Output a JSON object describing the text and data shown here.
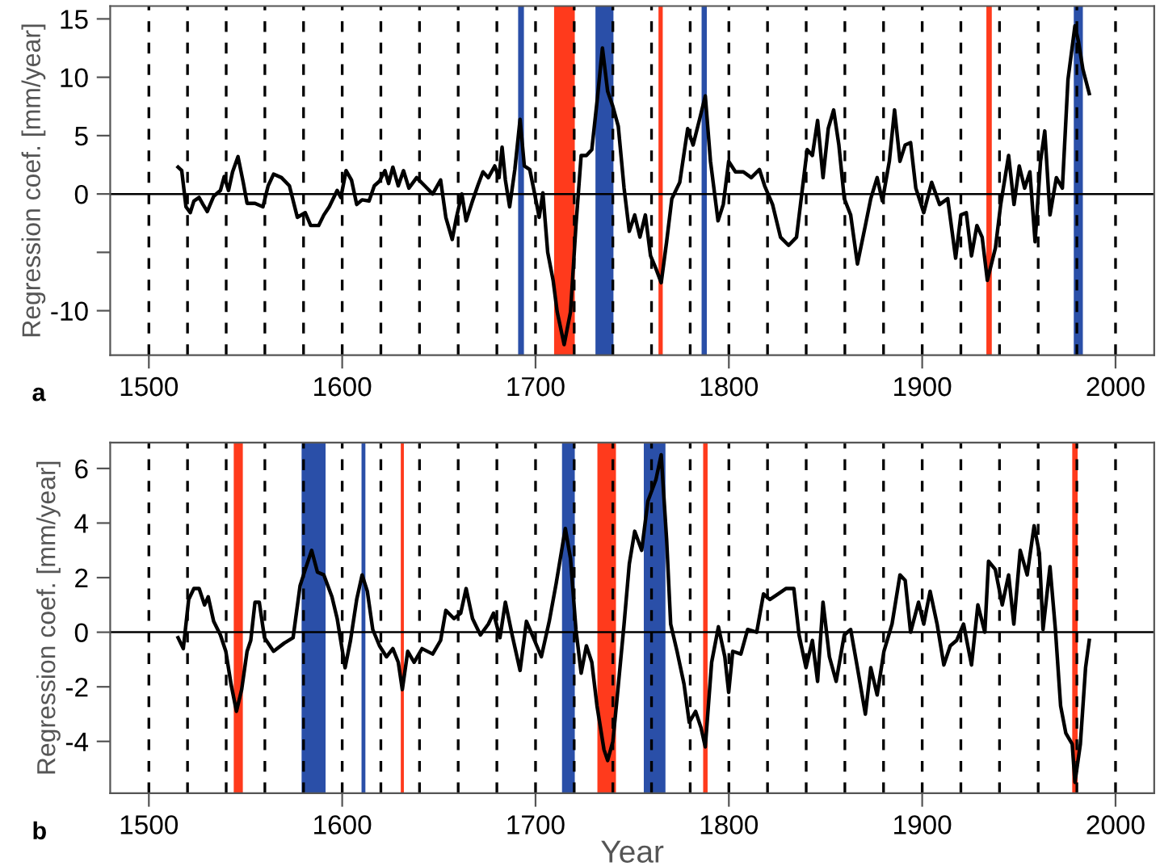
{
  "chart_data": [
    {
      "type": "line",
      "ylabel": "Regression coef. [mm/year]",
      "annotations": [
        "a"
      ],
      "xlim": [
        1480,
        2020
      ],
      "xticks": [
        1500,
        1600,
        1700,
        1800,
        1900,
        2000
      ],
      "ylim": [
        -13.8,
        16.1
      ],
      "yticks": [
        15,
        10,
        5,
        0,
        {
          "value": -5,
          "label": null
        },
        -10
      ],
      "grid": false,
      "legend": false,
      "marker": "none",
      "line_style": "solid",
      "series": [
        {
          "color": "#000000",
          "x": [
            1515.1,
            1517,
            1519.2,
            1521.4,
            1523.3,
            1526,
            1528,
            1530.2,
            1533.5,
            1537,
            1539,
            1541.2,
            1543.3,
            1546.1,
            1548.8,
            1550.8,
            1554.9,
            1559,
            1561.7,
            1564.5,
            1568.6,
            1572.7,
            1576.8,
            1580.9,
            1583.7,
            1587.8,
            1590.5,
            1593.3,
            1597.4,
            1599.3,
            1602,
            1604.8,
            1607.5,
            1610.3,
            1613.9,
            1616.6,
            1619.3,
            1622.1,
            1624,
            1626.2,
            1629,
            1631.7,
            1634.5,
            1638.5,
            1642.7,
            1646.8,
            1650.9,
            1653.6,
            1656.9,
            1659.1,
            1661.9,
            1664.1,
            1667.4,
            1670.1,
            1672.8,
            1675.6,
            1678.9,
            1681.1,
            1682.7,
            1684.4,
            1686.6,
            1689.3,
            1692,
            1694.2,
            1697,
            1699.2,
            1701.9,
            1703.8,
            1706.3,
            1709.1,
            1711.2,
            1714.8,
            1718.1,
            1720.9,
            1723.6,
            1726.3,
            1729.1,
            1731.8,
            1734.6,
            1737.3,
            1740,
            1742.8,
            1745.8,
            1748.5,
            1751.3,
            1754,
            1756.8,
            1759.5,
            1762.3,
            1765,
            1767.8,
            1770.5,
            1774.6,
            1778.7,
            1781.5,
            1785,
            1787.8,
            1790.5,
            1794.4,
            1797.1,
            1799.9,
            1803.4,
            1807.5,
            1811.6,
            1815.8,
            1818.5,
            1822.6,
            1826.7,
            1830.9,
            1835,
            1837.7,
            1840.5,
            1843.2,
            1845.9,
            1848.7,
            1851.4,
            1854.2,
            1856.9,
            1859.7,
            1863,
            1866.5,
            1870.6,
            1873.4,
            1876.7,
            1879.4,
            1883,
            1885.7,
            1888.5,
            1891.2,
            1894,
            1896.7,
            1900.8,
            1904.9,
            1909,
            1913.2,
            1917.3,
            1920,
            1922.8,
            1925.5,
            1928.3,
            1931,
            1933.7,
            1937.9,
            1940.6,
            1944.7,
            1947.5,
            1950.2,
            1953,
            1955.7,
            1958.4,
            1961.2,
            1963.4,
            1966.1,
            1969.4,
            1972.5,
            1975.4,
            1979,
            1980.9,
            1983.1,
            1986.4
          ],
          "values": [
            2.3,
            2.0,
            -1.1,
            -1.6,
            -0.6,
            -0.3,
            -0.9,
            -1.5,
            -0.2,
            0.3,
            1.5,
            0.3,
            1.9,
            3.2,
            1.0,
            -0.8,
            -0.8,
            -1.1,
            0.7,
            1.7,
            1.4,
            0.7,
            -2.0,
            -1.6,
            -2.7,
            -2.7,
            -1.8,
            -1.1,
            0.3,
            -0.3,
            2.0,
            1.2,
            -0.9,
            -0.5,
            -0.6,
            0.7,
            1.1,
            2.0,
            0.9,
            2.3,
            0.7,
            2.0,
            0.5,
            1.4,
            0.7,
            0,
            1.2,
            -2.0,
            -3.9,
            -2.0,
            0,
            -2.3,
            -0.6,
            0.7,
            1.9,
            1.4,
            2.4,
            1.4,
            4.0,
            1.2,
            -1.1,
            2.1,
            6.4,
            2.4,
            2.1,
            0.3,
            -2.0,
            0.1,
            -5.0,
            -7.4,
            -10.1,
            -12.9,
            -10.1,
            -2.7,
            3.3,
            3.3,
            3.8,
            7.9,
            12.5,
            8.8,
            7.5,
            5.8,
            0.5,
            -3.2,
            -1.8,
            -3.7,
            -1.8,
            -5.3,
            -6.4,
            -7.6,
            -4.1,
            -0.4,
            1.0,
            5.6,
            4.2,
            6.5,
            8.4,
            2.8,
            -2.3,
            -0.9,
            2.8,
            1.9,
            1.9,
            1.4,
            2.1,
            0.7,
            -0.9,
            -3.7,
            -4.4,
            -3.7,
            0,
            3.8,
            3.3,
            6.3,
            1.4,
            5.6,
            7.2,
            4.2,
            -0.4,
            -1.8,
            -6.0,
            -2.7,
            -0.4,
            1.4,
            -0.6,
            2.8,
            7.2,
            2.8,
            4.2,
            4.4,
            0.5,
            -1.6,
            1.0,
            -0.9,
            -0.4,
            -5.5,
            -1.8,
            -1.6,
            -5.3,
            -2.7,
            -3.7,
            -7.4,
            -4.6,
            -0.9,
            3.3,
            -0.9,
            2.4,
            0.5,
            1.9,
            -4.1,
            2.8,
            5.4,
            -1.8,
            1.4,
            0.5,
            9.8,
            14.4,
            13.0,
            10.7,
            8.6
          ]
        }
      ],
      "bands": [
        {
          "axis": "x",
          "from": 1691,
          "to": 1694,
          "color": "#2a4fa8"
        },
        {
          "axis": "x",
          "from": 1709.6,
          "to": 1720.3,
          "color": "#ff3a1c"
        },
        {
          "axis": "x",
          "from": 1731,
          "to": 1740.3,
          "color": "#2a4fa8"
        },
        {
          "axis": "x",
          "from": 1763.6,
          "to": 1765.8,
          "color": "#ff3a1c"
        },
        {
          "axis": "x",
          "from": 1785.9,
          "to": 1788.6,
          "color": "#2a4fa8"
        },
        {
          "axis": "x",
          "from": 1933.2,
          "to": 1936,
          "color": "#ff3a1c"
        },
        {
          "axis": "x",
          "from": 1978.4,
          "to": 1983.1,
          "color": "#2a4fa8"
        }
      ],
      "ref_lines": [
        {
          "axis": "y",
          "value": 0,
          "color": "#000000",
          "line_style": "solid"
        },
        {
          "axis": "x",
          "value": 1500,
          "color": "#000000",
          "line_style": "dashed"
        },
        {
          "axis": "x",
          "value": 1520,
          "color": "#000000",
          "line_style": "dashed"
        },
        {
          "axis": "x",
          "value": 1540,
          "color": "#000000",
          "line_style": "dashed"
        },
        {
          "axis": "x",
          "value": 1560,
          "color": "#000000",
          "line_style": "dashed"
        },
        {
          "axis": "x",
          "value": 1580,
          "color": "#000000",
          "line_style": "dashed"
        },
        {
          "axis": "x",
          "value": 1600,
          "color": "#000000",
          "line_style": "dashed"
        },
        {
          "axis": "x",
          "value": 1620,
          "color": "#000000",
          "line_style": "dashed"
        },
        {
          "axis": "x",
          "value": 1640,
          "color": "#000000",
          "line_style": "dashed"
        },
        {
          "axis": "x",
          "value": 1660,
          "color": "#000000",
          "line_style": "dashed"
        },
        {
          "axis": "x",
          "value": 1680,
          "color": "#000000",
          "line_style": "dashed"
        },
        {
          "axis": "x",
          "value": 1700,
          "color": "#000000",
          "line_style": "dashed"
        },
        {
          "axis": "x",
          "value": 1720,
          "color": "#000000",
          "line_style": "dashed"
        },
        {
          "axis": "x",
          "value": 1740,
          "color": "#000000",
          "line_style": "dashed"
        },
        {
          "axis": "x",
          "value": 1760,
          "color": "#000000",
          "line_style": "dashed"
        },
        {
          "axis": "x",
          "value": 1780,
          "color": "#000000",
          "line_style": "dashed"
        },
        {
          "axis": "x",
          "value": 1800,
          "color": "#000000",
          "line_style": "dashed"
        },
        {
          "axis": "x",
          "value": 1820,
          "color": "#000000",
          "line_style": "dashed"
        },
        {
          "axis": "x",
          "value": 1840,
          "color": "#000000",
          "line_style": "dashed"
        },
        {
          "axis": "x",
          "value": 1860,
          "color": "#000000",
          "line_style": "dashed"
        },
        {
          "axis": "x",
          "value": 1880,
          "color": "#000000",
          "line_style": "dashed"
        },
        {
          "axis": "x",
          "value": 1900,
          "color": "#000000",
          "line_style": "dashed"
        },
        {
          "axis": "x",
          "value": 1920,
          "color": "#000000",
          "line_style": "dashed"
        },
        {
          "axis": "x",
          "value": 1940,
          "color": "#000000",
          "line_style": "dashed"
        },
        {
          "axis": "x",
          "value": 1960,
          "color": "#000000",
          "line_style": "dashed"
        },
        {
          "axis": "x",
          "value": 1980,
          "color": "#000000",
          "line_style": "dashed"
        },
        {
          "axis": "x",
          "value": 2000,
          "color": "#000000",
          "line_style": "dashed"
        }
      ]
    },
    {
      "type": "line",
      "xlabel": "Year",
      "ylabel": "Regression coef. [mm/year]",
      "annotations": [
        "b"
      ],
      "xlim": [
        1480,
        2020
      ],
      "xticks": [
        1500,
        1600,
        1700,
        1800,
        1900,
        2000
      ],
      "ylim": [
        -5.9,
        6.95
      ],
      "yticks": [
        6,
        4,
        2,
        0,
        -2,
        -4
      ],
      "grid": false,
      "legend": false,
      "marker": "none",
      "line_style": "solid",
      "series": [
        {
          "color": "#000000",
          "x": [
            1515.1,
            1517.8,
            1520.6,
            1523.3,
            1526,
            1528.8,
            1530.7,
            1533.5,
            1537,
            1539.8,
            1542.5,
            1545.3,
            1548,
            1550.8,
            1552.7,
            1554.9,
            1557.1,
            1559.8,
            1564.5,
            1570,
            1574.6,
            1578.2,
            1580.9,
            1584.2,
            1587.2,
            1590.5,
            1594.7,
            1597.4,
            1601.5,
            1604.3,
            1607.5,
            1610.3,
            1613,
            1615.8,
            1619.3,
            1622.9,
            1626.2,
            1629,
            1631.1,
            1633.9,
            1637.2,
            1641.3,
            1646.8,
            1650.9,
            1653.6,
            1657.8,
            1661.3,
            1664.1,
            1667.4,
            1671.5,
            1675.6,
            1678.3,
            1681.6,
            1684.4,
            1687.9,
            1692,
            1695.3,
            1698.9,
            1703,
            1707.1,
            1710.7,
            1715.4,
            1718.1,
            1720.9,
            1723.6,
            1726.3,
            1729.1,
            1731.8,
            1735.4,
            1737.3,
            1740,
            1742.2,
            1745.8,
            1748.5,
            1751.3,
            1754.9,
            1758.1,
            1762.3,
            1765,
            1767.8,
            1769.9,
            1773.2,
            1776.8,
            1779.5,
            1782.8,
            1785.6,
            1787.8,
            1791.1,
            1794.6,
            1797.9,
            1799.9,
            1802,
            1806.2,
            1809.7,
            1814.4,
            1817.9,
            1821.2,
            1825.4,
            1829.5,
            1833.6,
            1836.3,
            1839.9,
            1843.2,
            1845.9,
            1848.7,
            1852,
            1855.5,
            1859.7,
            1863,
            1866.5,
            1870.6,
            1873.4,
            1876.7,
            1880.2,
            1884.4,
            1888.5,
            1891.2,
            1894,
            1898.1,
            1900.8,
            1904.1,
            1907.7,
            1911.2,
            1914.5,
            1917.8,
            1921.4,
            1925.5,
            1928.8,
            1932.4,
            1934.3,
            1937.8,
            1941.4,
            1944.7,
            1947.4,
            1950.7,
            1954.3,
            1957.9,
            1960.6,
            1962.5,
            1966.1,
            1968.9,
            1971.6,
            1974.3,
            1977.6,
            1979,
            1981.8,
            1984.5,
            1986.4
          ],
          "values": [
            -0.2,
            -0.6,
            1.2,
            1.6,
            1.6,
            1.0,
            1.3,
            0.4,
            -0.1,
            -0.7,
            -1.9,
            -2.9,
            -2.1,
            -0.7,
            -0.3,
            1.1,
            1.1,
            -0.2,
            -0.7,
            -0.4,
            -0.2,
            1.7,
            2.3,
            3.0,
            2.2,
            2.1,
            1.3,
            0.5,
            -1.3,
            -0.3,
            1.2,
            2.1,
            1.5,
            0.1,
            -0.5,
            -0.9,
            -0.6,
            -1.1,
            -2.1,
            -0.7,
            -1.1,
            -0.6,
            -0.8,
            -0.3,
            0.8,
            0.5,
            0.7,
            1.6,
            0.5,
            -0.1,
            0.3,
            0.7,
            -0.2,
            1.1,
            -0.1,
            -1.4,
            0.4,
            -0.2,
            -0.9,
            0.4,
            1.8,
            3.8,
            2.7,
            0.1,
            -1.5,
            -0.5,
            -1.1,
            -2.7,
            -4.3,
            -4.7,
            -4.0,
            -2.4,
            0.3,
            2.5,
            3.7,
            3.0,
            4.8,
            5.6,
            6.5,
            3.4,
            0.3,
            -0.7,
            -1.9,
            -3.3,
            -2.9,
            -3.5,
            -4.2,
            -1.1,
            0.2,
            -0.9,
            -2.2,
            -0.7,
            -0.8,
            0.1,
            0,
            1.4,
            1.2,
            1.4,
            1.6,
            1.6,
            -0.1,
            -1.3,
            -0.3,
            -1.8,
            1.1,
            -0.9,
            -1.8,
            -0.1,
            0.1,
            -1.3,
            -3.0,
            -1.3,
            -2.3,
            -0.7,
            0.3,
            2.1,
            1.9,
            0,
            1.1,
            0.3,
            1.5,
            0.3,
            -1.2,
            -0.5,
            -0.3,
            0.3,
            -1.2,
            1.0,
            0,
            2.6,
            2.3,
            1.0,
            2.1,
            0.3,
            3.0,
            2.1,
            3.9,
            2.9,
            0.1,
            2.4,
            0.1,
            -2.7,
            -3.7,
            -4.1,
            -5.5,
            -4.1,
            -1.3,
            -0.3
          ]
        }
      ],
      "bands": [
        {
          "axis": "x",
          "from": 1543.9,
          "to": 1548.6,
          "color": "#ff3a1c"
        },
        {
          "axis": "x",
          "from": 1579,
          "to": 1591.4,
          "color": "#2a4fa8"
        },
        {
          "axis": "x",
          "from": 1610,
          "to": 1612,
          "color": "#2a4fa8"
        },
        {
          "axis": "x",
          "from": 1630.3,
          "to": 1631.9,
          "color": "#ff3a1c"
        },
        {
          "axis": "x",
          "from": 1713.7,
          "to": 1720.3,
          "color": "#2a4fa8"
        },
        {
          "axis": "x",
          "from": 1732,
          "to": 1741.6,
          "color": "#ff3a1c"
        },
        {
          "axis": "x",
          "from": 1756,
          "to": 1767.2,
          "color": "#2a4fa8"
        },
        {
          "axis": "x",
          "from": 1786.7,
          "to": 1789,
          "color": "#ff3a1c"
        },
        {
          "axis": "x",
          "from": 1977.6,
          "to": 1980.4,
          "color": "#ff3a1c"
        }
      ],
      "ref_lines": [
        {
          "axis": "y",
          "value": 0,
          "color": "#000000",
          "line_style": "solid"
        },
        {
          "axis": "x",
          "value": 1500,
          "color": "#000000",
          "line_style": "dashed"
        },
        {
          "axis": "x",
          "value": 1520,
          "color": "#000000",
          "line_style": "dashed"
        },
        {
          "axis": "x",
          "value": 1540,
          "color": "#000000",
          "line_style": "dashed"
        },
        {
          "axis": "x",
          "value": 1560,
          "color": "#000000",
          "line_style": "dashed"
        },
        {
          "axis": "x",
          "value": 1580,
          "color": "#000000",
          "line_style": "dashed"
        },
        {
          "axis": "x",
          "value": 1600,
          "color": "#000000",
          "line_style": "dashed"
        },
        {
          "axis": "x",
          "value": 1620,
          "color": "#000000",
          "line_style": "dashed"
        },
        {
          "axis": "x",
          "value": 1640,
          "color": "#000000",
          "line_style": "dashed"
        },
        {
          "axis": "x",
          "value": 1660,
          "color": "#000000",
          "line_style": "dashed"
        },
        {
          "axis": "x",
          "value": 1680,
          "color": "#000000",
          "line_style": "dashed"
        },
        {
          "axis": "x",
          "value": 1700,
          "color": "#000000",
          "line_style": "dashed"
        },
        {
          "axis": "x",
          "value": 1720,
          "color": "#000000",
          "line_style": "dashed"
        },
        {
          "axis": "x",
          "value": 1740,
          "color": "#000000",
          "line_style": "dashed"
        },
        {
          "axis": "x",
          "value": 1760,
          "color": "#000000",
          "line_style": "dashed"
        },
        {
          "axis": "x",
          "value": 1780,
          "color": "#000000",
          "line_style": "dashed"
        },
        {
          "axis": "x",
          "value": 1800,
          "color": "#000000",
          "line_style": "dashed"
        },
        {
          "axis": "x",
          "value": 1820,
          "color": "#000000",
          "line_style": "dashed"
        },
        {
          "axis": "x",
          "value": 1840,
          "color": "#000000",
          "line_style": "dashed"
        },
        {
          "axis": "x",
          "value": 1860,
          "color": "#000000",
          "line_style": "dashed"
        },
        {
          "axis": "x",
          "value": 1880,
          "color": "#000000",
          "line_style": "dashed"
        },
        {
          "axis": "x",
          "value": 1900,
          "color": "#000000",
          "line_style": "dashed"
        },
        {
          "axis": "x",
          "value": 1920,
          "color": "#000000",
          "line_style": "dashed"
        },
        {
          "axis": "x",
          "value": 1940,
          "color": "#000000",
          "line_style": "dashed"
        },
        {
          "axis": "x",
          "value": 1960,
          "color": "#000000",
          "line_style": "dashed"
        },
        {
          "axis": "x",
          "value": 1980,
          "color": "#000000",
          "line_style": "dashed"
        },
        {
          "axis": "x",
          "value": 2000,
          "color": "#000000",
          "line_style": "dashed"
        }
      ]
    }
  ]
}
